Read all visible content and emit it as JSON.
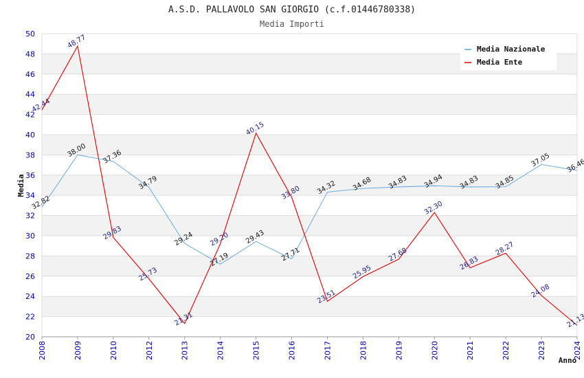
{
  "chart_data": {
    "type": "line",
    "title": "A.S.D. PALLAVOLO SAN GIORGIO (c.f.01446780338)",
    "subtitle": "Media Importi",
    "xlabel": "Anno",
    "ylabel": "Media",
    "ylim": [
      20,
      50
    ],
    "ytick_step": 2,
    "categories": [
      "2008",
      "2009",
      "2010",
      "2012",
      "2013",
      "2014",
      "2015",
      "2016",
      "2017",
      "2018",
      "2019",
      "2020",
      "2021",
      "2022",
      "2023",
      "2024"
    ],
    "series": [
      {
        "name": "Media Nazionale",
        "color": "#5ba3e0",
        "label_color": "#111111",
        "values": [
          32.82,
          38.0,
          37.36,
          34.79,
          29.24,
          27.19,
          29.43,
          27.71,
          34.32,
          34.68,
          34.83,
          34.94,
          34.83,
          34.85,
          37.05,
          36.46
        ],
        "labels": [
          "32.82",
          "38.00",
          "37.36",
          "34.79",
          "29.24",
          "27.19",
          "29.43",
          "27.71",
          "34.32",
          "34.68",
          "34.83",
          "34.94",
          "34.83",
          "34.85",
          "37.05",
          "36.46"
        ]
      },
      {
        "name": "Media Ente",
        "color": "#dd0000",
        "label_color": "#1a1a80",
        "values": [
          42.44,
          48.77,
          29.83,
          25.73,
          21.31,
          29.2,
          40.15,
          33.8,
          23.51,
          25.95,
          27.68,
          32.3,
          26.83,
          28.27,
          24.08,
          21.13
        ],
        "labels": [
          "42.44",
          "48.77",
          "29.83",
          "25.73",
          "21.31",
          "29.20",
          "40.15",
          "33.80",
          "23.51",
          "25.95",
          "27.68",
          "32.30",
          "26.83",
          "28.27",
          "24.08",
          "21.13"
        ]
      }
    ],
    "legend": "top-right",
    "grid": true
  }
}
